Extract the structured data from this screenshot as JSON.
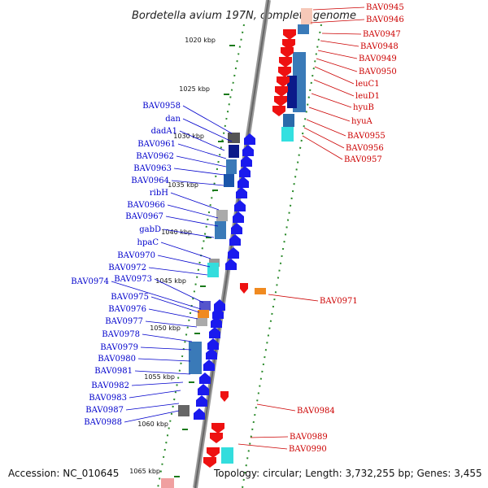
{
  "title": "Bordetella avium 197N, complete genome",
  "accession": "Accession: NC_010645",
  "topology": "Topology: circular; Length: 3,732,255 bp; Genes: 3,455",
  "colors": {
    "plus_label": "#0000cc",
    "minus_label": "#cc0000",
    "plus_gene": "#0022ee",
    "minus_gene": "#ee1111",
    "tick_green": "#1a7a1a",
    "backbone": "#888888"
  },
  "ruler": [
    "1020 kbp",
    "1025 kbp",
    "1030 kbp",
    "1035 kbp",
    "1040 kbp",
    "1045 kbp",
    "1050 kbp",
    "1055 kbp",
    "1060 kbp",
    "1065 kbp"
  ],
  "left_labels": [
    "BAV0958",
    "dan",
    "dadA1",
    "BAV0961",
    "BAV0962",
    "BAV0963",
    "BAV0964",
    "ribH",
    "BAV0966",
    "BAV0967",
    "gabD",
    "hpaC",
    "BAV0970",
    "BAV0972",
    "BAV0973",
    "BAV0974",
    "BAV0975",
    "BAV0976",
    "BAV0977",
    "BAV0978",
    "BAV0979",
    "BAV0980",
    "BAV0981",
    "BAV0982",
    "BAV0983",
    "BAV0987",
    "BAV0988"
  ],
  "right_labels": [
    "BAV0945",
    "BAV0946",
    "BAV0947",
    "BAV0948",
    "BAV0949",
    "BAV0950",
    "leuC1",
    "leuD1",
    "hyuB",
    "hyuA",
    "BAV0955",
    "BAV0956",
    "BAV0957",
    "BAV0971",
    "BAV0984",
    "BAV0989",
    "BAV0990"
  ]
}
